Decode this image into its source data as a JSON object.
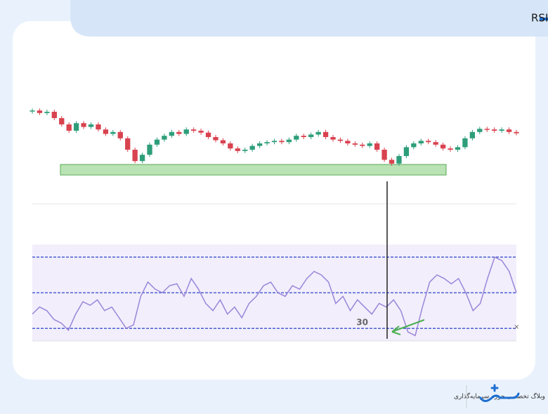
{
  "title": "اشباع فروش در اندیکاتور RSI",
  "footer": {
    "tagline": "وبلاگ تخصصی حوزه سرمایه‌گذاری"
  },
  "chart_data": [
    {
      "type": "candlestick",
      "values": [
        92,
        88,
        90,
        80,
        70,
        60,
        72,
        66,
        70,
        62,
        55,
        58,
        48,
        30,
        12,
        22,
        38,
        46,
        52,
        58,
        55,
        62,
        60,
        57,
        50,
        45,
        40,
        32,
        28,
        30,
        36,
        40,
        42,
        44,
        42,
        46,
        52,
        50,
        54,
        58,
        50,
        46,
        44,
        40,
        38,
        36,
        40,
        30,
        14,
        8,
        20,
        34,
        40,
        44,
        42,
        38,
        32,
        30,
        34,
        48,
        58,
        63,
        62,
        60,
        62,
        58,
        56
      ],
      "ylim": [
        0,
        100
      ],
      "up_color": "#2e9e7a",
      "down_color": "#d9424f"
    },
    {
      "type": "line",
      "values": [
        38,
        42,
        40,
        35,
        33,
        29,
        38,
        45,
        43,
        46,
        40,
        42,
        36,
        30,
        32,
        48,
        56,
        52,
        50,
        54,
        55,
        48,
        58,
        52,
        44,
        40,
        46,
        38,
        42,
        36,
        44,
        48,
        54,
        56,
        50,
        48,
        54,
        52,
        58,
        62,
        60,
        56,
        44,
        48,
        40,
        46,
        42,
        38,
        44,
        42,
        46,
        40,
        28,
        26,
        42,
        56,
        60,
        58,
        55,
        58,
        50,
        40,
        44,
        58,
        70,
        68,
        62,
        50
      ],
      "ylim": [
        23,
        77
      ],
      "levels": [
        70,
        50,
        30
      ],
      "color": "#9a86d8",
      "level_color": "#4a5fd0"
    }
  ]
}
